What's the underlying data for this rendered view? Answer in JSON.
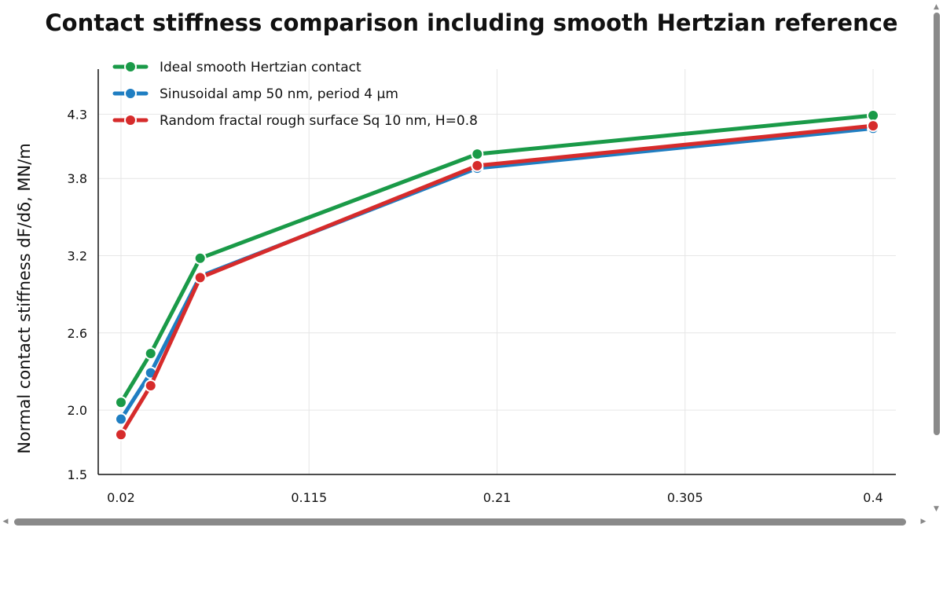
{
  "chart_data": {
    "type": "line",
    "title": "Contact stiffness comparison including smooth Hertzian reference",
    "ylabel": "Normal contact stiffness dF/dδ, MN/m",
    "x_ticks": [
      "0.02",
      "0.115",
      "0.21",
      "0.305",
      "0.4"
    ],
    "y_ticks": [
      "1.5",
      "2.0",
      "2.6",
      "3.2",
      "3.8",
      "4.3"
    ],
    "x_tick_values": [
      0.02,
      0.115,
      0.21,
      0.305,
      0.4
    ],
    "y_tick_values": [
      1.5,
      2.0,
      2.6,
      3.2,
      3.8,
      4.3
    ],
    "xlim": [
      0.0085,
      0.4115
    ],
    "ylim": [
      1.5,
      4.65
    ],
    "grid": true,
    "legend_position": "top-left",
    "x": [
      0.02,
      0.035,
      0.06,
      0.2,
      0.4
    ],
    "series": [
      {
        "name": "Ideal smooth Hertzian contact",
        "color": "#1a9a48",
        "values": [
          2.06,
          2.44,
          3.18,
          3.99,
          4.29
        ]
      },
      {
        "name": "Sinusoidal amp 50 nm, period 4 μm",
        "color": "#1f7ec2",
        "values": [
          1.93,
          2.29,
          3.04,
          3.88,
          4.19
        ]
      },
      {
        "name": "Random fractal rough surface Sq 10 nm, H=0.8",
        "color": "#d62b2b",
        "values": [
          1.81,
          2.19,
          3.03,
          3.9,
          4.21
        ]
      }
    ]
  }
}
